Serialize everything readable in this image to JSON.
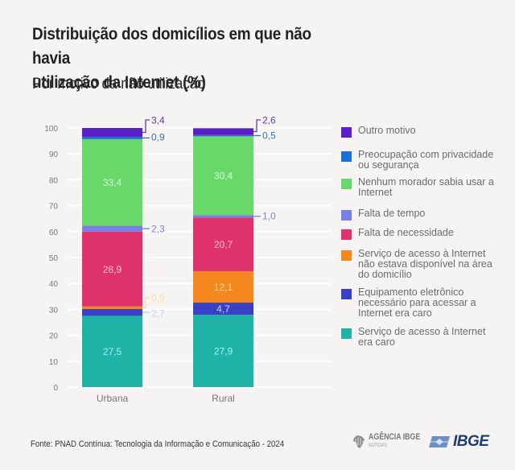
{
  "chart_data": {
    "type": "bar",
    "stacked": true,
    "title": "Distribuição dos domicílios em que não havia utilização da Internet (%)",
    "title_lines": [
      "Distribuição dos domicílios em que não havia",
      "utilização da Internet (%)"
    ],
    "subtitle": "Por motivo da não utilização",
    "xlabel": "",
    "ylabel": "",
    "ylim": [
      0,
      100
    ],
    "yticks": [
      0,
      10,
      20,
      30,
      40,
      50,
      60,
      70,
      80,
      90,
      100
    ],
    "grid": true,
    "categories": [
      "Urbana",
      "Rural"
    ],
    "legend_position": "right",
    "series": [
      {
        "name": "Serviço de acesso à Internet era caro",
        "color": "#1fb2a7",
        "values": [
          27.5,
          27.9
        ],
        "labels": [
          "27,5",
          "27,9"
        ],
        "label_color": "#9ff5ee"
      },
      {
        "name": "Equipamento eletrônico necessário para acessar a Internet era caro",
        "color": "#3a40c4",
        "values": [
          2.7,
          4.7
        ],
        "labels": [
          "2,7",
          "4,7"
        ],
        "label_color": "#c8caff"
      },
      {
        "name": "Serviço de acesso à Internet não estava disponível na área do domicílio",
        "color": "#f5871f",
        "values": [
          0.9,
          12.1
        ],
        "labels": [
          "0,9",
          "12,1"
        ],
        "label_color": "#ffd9a8"
      },
      {
        "name": "Falta de necessidade",
        "color": "#e0336e",
        "values": [
          28.9,
          20.7
        ],
        "labels": [
          "28,9",
          "20,7"
        ],
        "label_color": "#ffc1d8"
      },
      {
        "name": "Falta de tempo",
        "color": "#7a7fe6",
        "values": [
          2.3,
          1.0
        ],
        "labels": [
          "2,3",
          "1,0"
        ],
        "label_color": "#7a7fe6"
      },
      {
        "name": "Nenhum morador sabia usar a Internet",
        "color": "#68d86a",
        "values": [
          33.4,
          30.4
        ],
        "labels": [
          "33,4",
          "30,4"
        ],
        "label_color": "#d9ffd9"
      },
      {
        "name": "Preocupação com privacidade ou segurança",
        "color": "#1f6fd6",
        "values": [
          0.9,
          0.5
        ],
        "labels": [
          "0,9",
          "0,5"
        ],
        "label_color": "#3d6fb0"
      },
      {
        "name": "Outro motivo",
        "color": "#5a1fc8",
        "values": [
          3.4,
          2.6
        ],
        "labels": [
          "3,4",
          "2,6"
        ],
        "label_color": "#5a3fa0"
      }
    ],
    "legend": [
      {
        "label": "Outro motivo",
        "color": "#5a1fc8"
      },
      {
        "label": "Preocupação com privacidade ou segurança",
        "color": "#1f6fd6"
      },
      {
        "label": "Nenhum morador sabia usar a Internet",
        "color": "#68d86a"
      },
      {
        "label": "Falta de tempo",
        "color": "#7a7fe6"
      },
      {
        "label": "Falta de necessidade",
        "color": "#e0336e"
      },
      {
        "label": "Serviço de acesso à Internet não estava disponível na área do domicílio",
        "color": "#f5871f"
      },
      {
        "label": "Equipamento eletrônico necessário para acessar a Internet era caro",
        "color": "#3a40c4"
      },
      {
        "label": "Serviço de acesso à Internet era caro",
        "color": "#1fb2a7"
      }
    ]
  },
  "source": "Fonte: PNAD Contínua: Tecnologia da Informação e Comunicação - 2024",
  "logos": {
    "agencia": "AGÊNCIA IBGE",
    "agencia_sub": "NOTÍCIAS",
    "ibge": "IBGE"
  }
}
